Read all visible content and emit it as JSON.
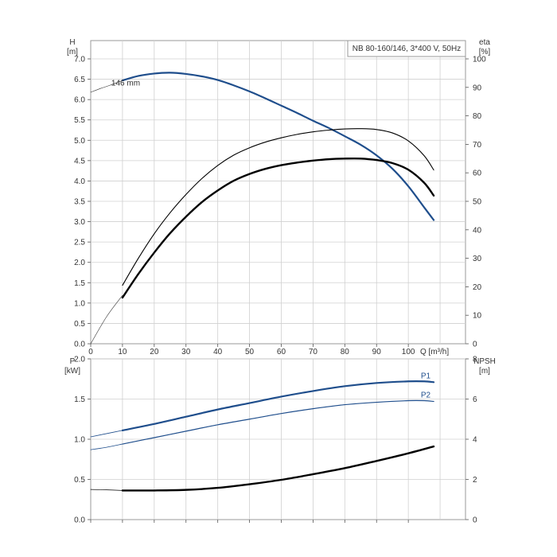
{
  "chart_data": [
    {
      "type": "line",
      "title": "NB 80-160/146, 3*400 V, 50Hz",
      "xlabel": "Q [m³/h]",
      "ylabel": "H\n[m]",
      "y2label": "eta\n[%]",
      "xlim": [
        0,
        118
      ],
      "ylim": [
        0,
        7.0
      ],
      "y2lim": [
        0,
        100
      ],
      "xticks": [
        0,
        10,
        20,
        30,
        40,
        50,
        60,
        70,
        80,
        90,
        100
      ],
      "yticks": [
        "0.0",
        "0.5",
        "1.0",
        "1.5",
        "2.0",
        "2.5",
        "3.0",
        "3.5",
        "4.0",
        "4.5",
        "5.0",
        "5.5",
        "6.0",
        "6.5",
        "7.0"
      ],
      "y2ticks": [
        "0",
        "10",
        "20",
        "30",
        "40",
        "50",
        "60",
        "70",
        "80",
        "90",
        "100"
      ],
      "grid": true,
      "annotations": [
        {
          "text": "146 mm",
          "x": 10.5,
          "y": 6.42
        }
      ],
      "series": [
        {
          "key": "head",
          "axis": "left",
          "color": "#1f4e8c",
          "width": 2.2,
          "x": [
            10,
            15,
            20,
            25,
            30,
            35,
            40,
            45,
            50,
            55,
            60,
            65,
            70,
            75,
            80,
            85,
            90,
            95,
            100,
            105,
            108
          ],
          "y": [
            6.47,
            6.58,
            6.64,
            6.66,
            6.63,
            6.57,
            6.48,
            6.35,
            6.2,
            6.03,
            5.85,
            5.67,
            5.48,
            5.3,
            5.1,
            4.89,
            4.63,
            4.3,
            3.87,
            3.35,
            3.04
          ]
        },
        {
          "key": "head-ext",
          "axis": "left",
          "color": "#333333",
          "width": 0.6,
          "x": [
            0,
            3,
            6,
            8,
            10
          ],
          "y": [
            6.18,
            6.27,
            6.35,
            6.41,
            6.47
          ]
        },
        {
          "key": "eta-thin",
          "axis": "right",
          "color": "#000000",
          "width": 1.1,
          "x": [
            10,
            15,
            20,
            25,
            30,
            35,
            40,
            45,
            50,
            55,
            60,
            65,
            70,
            75,
            80,
            85,
            90,
            95,
            100,
            105,
            108
          ],
          "y": [
            20.5,
            30,
            38.6,
            46,
            52.4,
            58,
            62.6,
            66.2,
            68.8,
            70.8,
            72.3,
            73.5,
            74.4,
            75,
            75.4,
            75.5,
            75.2,
            74,
            71.2,
            66,
            61
          ]
        },
        {
          "key": "eta-ext",
          "axis": "right",
          "color": "#333333",
          "width": 0.6,
          "x": [
            0,
            5,
            10
          ],
          "y": [
            0,
            9.5,
            17
          ]
        },
        {
          "key": "eta-thick",
          "axis": "right",
          "color": "#000000",
          "width": 2.4,
          "x": [
            10,
            15,
            20,
            25,
            30,
            35,
            40,
            45,
            50,
            55,
            60,
            65,
            70,
            75,
            80,
            85,
            90,
            95,
            100,
            105,
            108
          ],
          "y": [
            16.2,
            24.5,
            32,
            38.8,
            44.6,
            49.7,
            53.8,
            57.2,
            59.6,
            61.4,
            62.7,
            63.6,
            64.3,
            64.8,
            65,
            65,
            64.5,
            63.4,
            61.1,
            56.5,
            52
          ]
        }
      ]
    },
    {
      "type": "line",
      "xlabel": "",
      "ylabel": "P\n[kW]",
      "y2label": "NPSH\n[m]",
      "xlim": [
        0,
        118
      ],
      "ylim": [
        0,
        2.0
      ],
      "y2lim": [
        0,
        8
      ],
      "xticks": [
        0,
        10,
        20,
        30,
        40,
        50,
        60,
        70,
        80,
        90,
        100
      ],
      "yticks": [
        "0.0",
        "0.5",
        "1.0",
        "1.5",
        "2.0"
      ],
      "y2ticks": [
        "0",
        "2",
        "4",
        "6",
        "8"
      ],
      "grid": true,
      "series": [
        {
          "name": "P1",
          "key": "p1",
          "axis": "left",
          "color": "#1f4e8c",
          "width": 2.2,
          "x": [
            10,
            20,
            30,
            40,
            50,
            60,
            70,
            80,
            90,
            100,
            105,
            108
          ],
          "y": [
            1.11,
            1.19,
            1.28,
            1.37,
            1.45,
            1.53,
            1.6,
            1.66,
            1.7,
            1.72,
            1.72,
            1.71
          ]
        },
        {
          "key": "p1-ext",
          "axis": "left",
          "color": "#1f4e8c",
          "width": 0.8,
          "x": [
            0,
            5,
            10
          ],
          "y": [
            1.03,
            1.07,
            1.11
          ]
        },
        {
          "name": "P2",
          "key": "p2",
          "axis": "left",
          "color": "#1f4e8c",
          "width": 1.2,
          "x": [
            10,
            20,
            30,
            40,
            50,
            60,
            70,
            80,
            90,
            100,
            105,
            108
          ],
          "y": [
            0.94,
            1.02,
            1.1,
            1.18,
            1.25,
            1.32,
            1.38,
            1.43,
            1.46,
            1.48,
            1.48,
            1.47
          ]
        },
        {
          "key": "p2-ext",
          "axis": "left",
          "color": "#1f4e8c",
          "width": 0.8,
          "x": [
            0,
            5,
            10
          ],
          "y": [
            0.87,
            0.9,
            0.94
          ]
        },
        {
          "key": "npsh",
          "axis": "right",
          "color": "#000000",
          "width": 2.4,
          "x": [
            10,
            20,
            30,
            40,
            50,
            60,
            70,
            80,
            90,
            100,
            108
          ],
          "y": [
            1.45,
            1.45,
            1.48,
            1.58,
            1.76,
            1.98,
            2.26,
            2.56,
            2.92,
            3.3,
            3.64
          ]
        },
        {
          "key": "npsh-ext",
          "axis": "right",
          "color": "#000000",
          "width": 0.7,
          "x": [
            0,
            5,
            10
          ],
          "y": [
            1.5,
            1.48,
            1.45
          ]
        }
      ]
    }
  ]
}
